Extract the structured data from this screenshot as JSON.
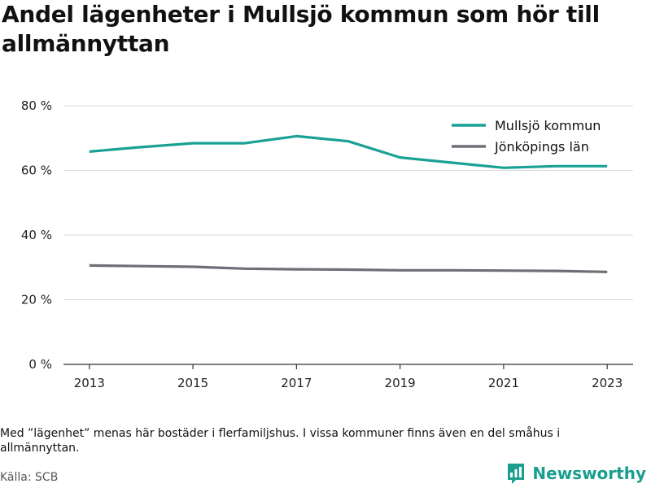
{
  "header": {
    "title": "Andel lägenheter i Mullsjö kommun som hör till allmännyttan"
  },
  "footer": {
    "note": "Med ”lägenhet” menas här bostäder i flerfamiljshus. I vissa kommuner finns även en del småhus i allmännyttan.",
    "source": "Källa: SCB",
    "brand": "Newsworthy",
    "brand_color": "#1a9e8f",
    "brand_icon": "bar-chart-icon"
  },
  "chart_data": {
    "type": "line",
    "title": "Andel lägenheter i Mullsjö kommun som hör till allmännyttan",
    "xlabel": "",
    "ylabel": "",
    "x": [
      2013,
      2014,
      2015,
      2016,
      2017,
      2018,
      2019,
      2020,
      2021,
      2022,
      2023
    ],
    "x_ticks": [
      2013,
      2015,
      2017,
      2019,
      2021,
      2023
    ],
    "x_tick_labels": [
      "2013",
      "2015",
      "2017",
      "2019",
      "2021",
      "2023"
    ],
    "xlim": [
      2012.5,
      2023.5
    ],
    "ylim": [
      0,
      80
    ],
    "y_ticks": [
      0,
      20,
      40,
      60,
      80
    ],
    "y_tick_labels": [
      "0 %",
      "20 %",
      "40 %",
      "60 %",
      "80 %"
    ],
    "grid": true,
    "legend_position": "top-right",
    "series": [
      {
        "name": "Mullsjö kommun",
        "color": "#1aa196",
        "values": [
          65.8,
          67.2,
          68.4,
          68.4,
          70.6,
          69.0,
          64.0,
          62.4,
          60.8,
          61.3,
          61.3
        ]
      },
      {
        "name": "Jönköpings län",
        "color": "#6e6e76",
        "values": [
          30.6,
          30.4,
          30.2,
          29.6,
          29.4,
          29.3,
          29.1,
          29.1,
          29.0,
          28.9,
          28.6
        ]
      }
    ]
  }
}
